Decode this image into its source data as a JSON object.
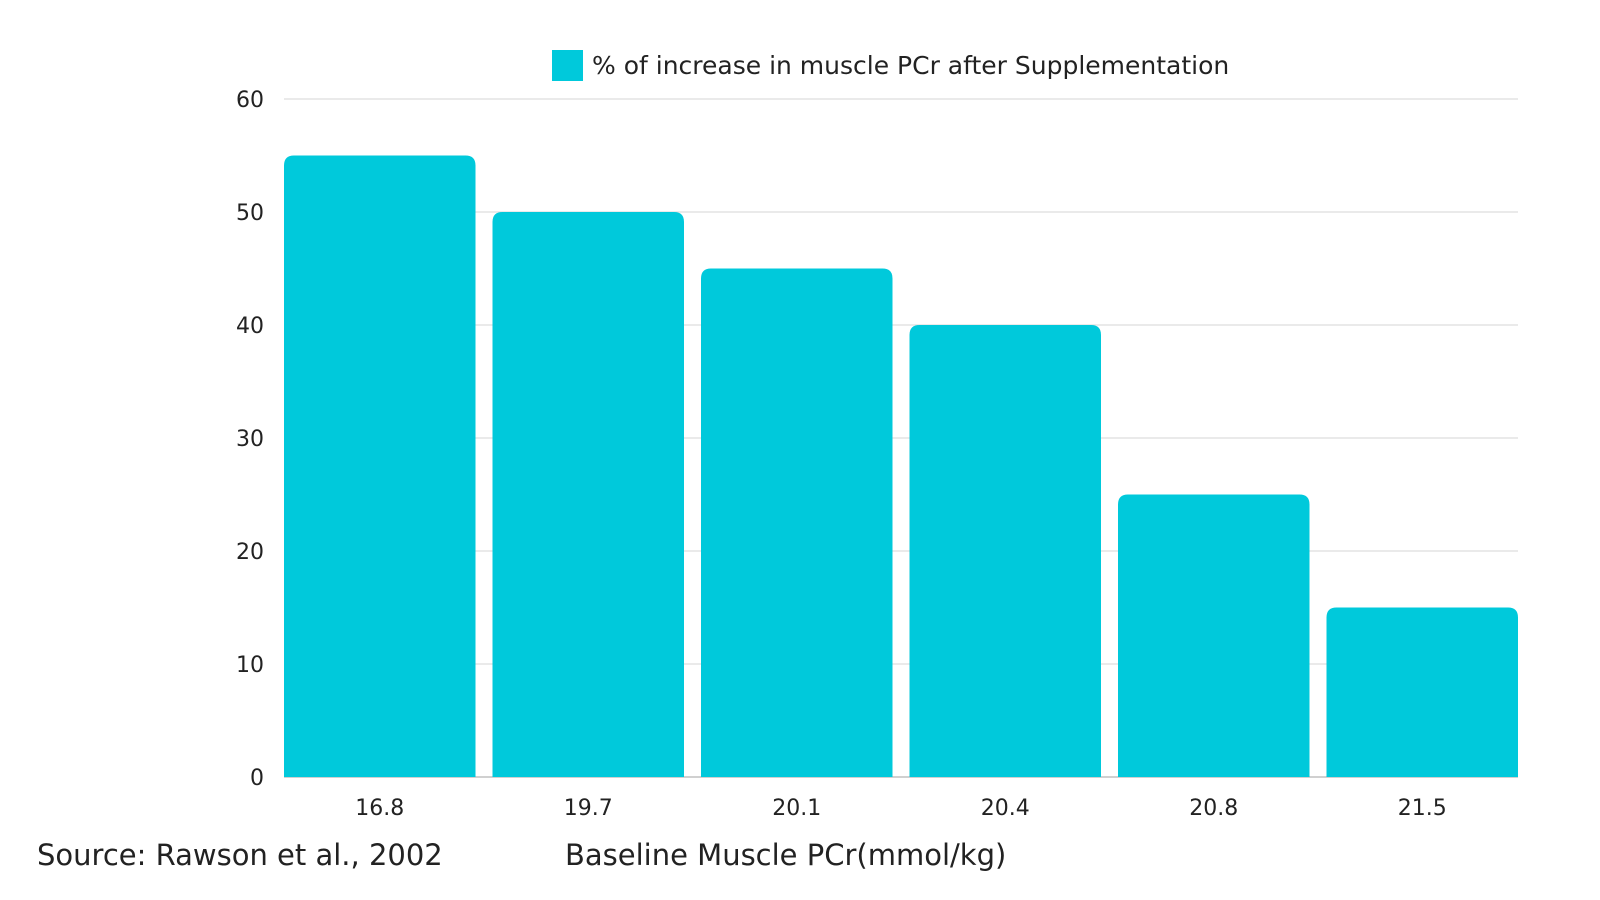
{
  "chart_data": {
    "type": "bar",
    "categories": [
      "16.8",
      "19.7",
      "20.1",
      "20.4",
      "20.8",
      "21.5"
    ],
    "series": [
      {
        "name": "% of increase in muscle PCr after Supplementation",
        "values": [
          55,
          50,
          45,
          40,
          25,
          15
        ],
        "color": "#00C9DB"
      }
    ],
    "xlabel": "Baseline Muscle PCr(mmol/kg)",
    "ylabel": "",
    "ylim": [
      0,
      60
    ],
    "yticks": [
      "0",
      "10",
      "20",
      "30",
      "40",
      "50",
      "60"
    ],
    "grid": true,
    "legend_position": "top-center"
  },
  "source_note": "Source: Rawson et al., 2002",
  "colors": {
    "bar": "#00C9DB",
    "grid": "#DDDDDD",
    "axis": "#D0D0D0",
    "text": "#222222"
  }
}
